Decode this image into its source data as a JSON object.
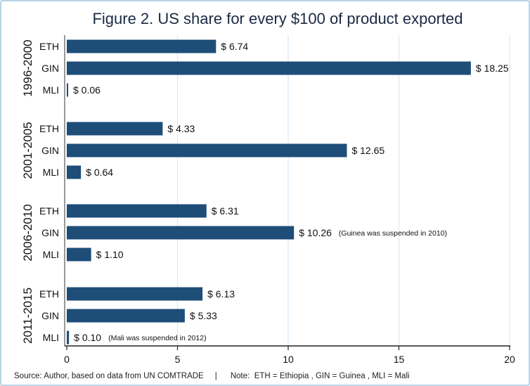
{
  "chart_data": {
    "type": "bar",
    "orientation": "horizontal",
    "title": "Figure 2. US share for every $100 of product exported",
    "xlim": [
      0,
      20
    ],
    "xticks": [
      0,
      5,
      10,
      15,
      20
    ],
    "grid": true,
    "groups": [
      {
        "label": "1996-2000",
        "bars": [
          {
            "category": "ETH",
            "value": 6.74,
            "label": "$ 6.74",
            "note": ""
          },
          {
            "category": "GIN",
            "value": 18.25,
            "label": "$ 18.25",
            "note": ""
          },
          {
            "category": "MLI",
            "value": 0.06,
            "label": "$ 0.06",
            "note": ""
          }
        ]
      },
      {
        "label": "2001-2005",
        "bars": [
          {
            "category": "ETH",
            "value": 4.33,
            "label": "$ 4.33",
            "note": ""
          },
          {
            "category": "GIN",
            "value": 12.65,
            "label": "$ 12.65",
            "note": ""
          },
          {
            "category": "MLI",
            "value": 0.64,
            "label": "$ 0.64",
            "note": ""
          }
        ]
      },
      {
        "label": "2006-2010",
        "bars": [
          {
            "category": "ETH",
            "value": 6.31,
            "label": "$ 6.31",
            "note": ""
          },
          {
            "category": "GIN",
            "value": 10.26,
            "label": "$ 10.26",
            "note": "(Guinea was suspended in 2010)"
          },
          {
            "category": "MLI",
            "value": 1.1,
            "label": "$ 1.10",
            "note": ""
          }
        ]
      },
      {
        "label": "2011-2015",
        "bars": [
          {
            "category": "ETH",
            "value": 6.13,
            "label": "$ 6.13",
            "note": ""
          },
          {
            "category": "GIN",
            "value": 5.33,
            "label": "$ 5.33",
            "note": ""
          },
          {
            "category": "MLI",
            "value": 0.1,
            "label": "$ 0.10",
            "note": "(Mali was suspended in 2012)"
          }
        ]
      }
    ],
    "footer": "Source: Author, based on data from UN COMTRADE     |      Note:  ETH = Ethiopia , GIN = Guinea , MLI = Mali",
    "colors": {
      "bar": "#1e4d78",
      "grid": "#dce9f3",
      "border": "#b9d3e6"
    }
  }
}
